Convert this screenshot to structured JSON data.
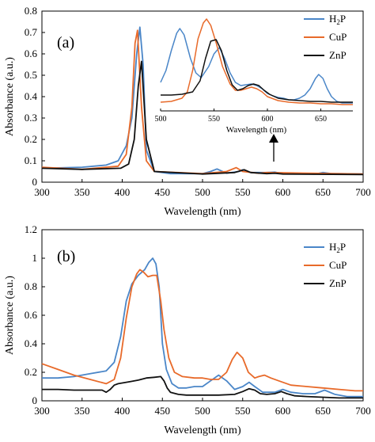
{
  "chart_data": [
    {
      "panel_label": "(a)",
      "type": "line",
      "xlabel": "Wavelength (nm)",
      "ylabel": "Absorbance (a.u.)",
      "xlim": [
        300,
        700
      ],
      "ylim": [
        0,
        0.8
      ],
      "x_ticks": [
        300,
        350,
        400,
        450,
        500,
        550,
        600,
        650,
        700
      ],
      "y_ticks": [
        0,
        0.1,
        0.2,
        0.3,
        0.4,
        0.5,
        0.6,
        0.7,
        0.8
      ],
      "legend_position": "top-right",
      "grid": false,
      "series": [
        {
          "name": "H2P",
          "legend_main": "H",
          "legend_sub": "2",
          "legend_rest": "P",
          "color": "#4a86c8",
          "x": [
            300,
            350,
            380,
            395,
            405,
            412,
            418,
            422,
            426,
            430,
            440,
            460,
            500,
            510,
            518,
            530,
            545,
            550,
            560,
            580,
            590,
            600,
            640,
            650,
            660,
            700
          ],
          "y": [
            0.065,
            0.07,
            0.08,
            0.1,
            0.17,
            0.3,
            0.6,
            0.725,
            0.55,
            0.15,
            0.05,
            0.04,
            0.04,
            0.05,
            0.062,
            0.042,
            0.05,
            0.058,
            0.045,
            0.045,
            0.047,
            0.04,
            0.038,
            0.045,
            0.04,
            0.038
          ]
        },
        {
          "name": "CuP",
          "legend_main": "CuP",
          "legend_sub": "",
          "legend_rest": "",
          "color": "#e86a2a",
          "x": [
            300,
            350,
            395,
            405,
            412,
            416,
            419,
            424,
            430,
            440,
            500,
            530,
            542,
            550,
            570,
            580,
            700
          ],
          "y": [
            0.07,
            0.06,
            0.075,
            0.13,
            0.35,
            0.65,
            0.71,
            0.35,
            0.1,
            0.05,
            0.04,
            0.05,
            0.068,
            0.05,
            0.042,
            0.045,
            0.038
          ]
        },
        {
          "name": "ZnP",
          "legend_main": "ZnP",
          "legend_sub": "",
          "legend_rest": "",
          "color": "#111111",
          "x": [
            300,
            350,
            398,
            408,
            415,
            420,
            424,
            430,
            440,
            500,
            540,
            552,
            560,
            580,
            590,
            600,
            700
          ],
          "y": [
            0.065,
            0.06,
            0.065,
            0.085,
            0.2,
            0.45,
            0.565,
            0.2,
            0.05,
            0.038,
            0.045,
            0.058,
            0.045,
            0.04,
            0.042,
            0.038,
            0.036
          ]
        }
      ],
      "inset": {
        "xlabel": "Wavelength (nm)",
        "xlim": [
          500,
          680
        ],
        "x_ticks": [
          500,
          550,
          600,
          650
        ],
        "series": [
          {
            "name": "H2P",
            "x": [
              500,
              505,
              510,
              515,
              518,
              522,
              528,
              533,
              538,
              545,
              550,
              555,
              560,
              565,
              570,
              575,
              580,
              585,
              590,
              595,
              600,
              605,
              610,
              615,
              620,
              625,
              630,
              635,
              640,
              645,
              648,
              652,
              656,
              660,
              665,
              670,
              675,
              680
            ],
            "y": [
              0.3,
              0.45,
              0.7,
              0.92,
              0.98,
              0.9,
              0.6,
              0.42,
              0.36,
              0.5,
              0.66,
              0.74,
              0.6,
              0.42,
              0.3,
              0.26,
              0.27,
              0.28,
              0.26,
              0.22,
              0.16,
              0.13,
              0.11,
              0.1,
              0.08,
              0.08,
              0.1,
              0.14,
              0.22,
              0.35,
              0.4,
              0.35,
              0.22,
              0.12,
              0.06,
              0.04,
              0.04,
              0.04
            ]
          },
          {
            "name": "CuP",
            "x": [
              500,
              510,
              520,
              525,
              530,
              535,
              540,
              543,
              547,
              552,
              558,
              565,
              570,
              575,
              580,
              585,
              590,
              595,
              600,
              610,
              620,
              630,
              640,
              650,
              660,
              670,
              680
            ],
            "y": [
              0.05,
              0.06,
              0.1,
              0.18,
              0.45,
              0.85,
              1.05,
              1.1,
              1.02,
              0.8,
              0.5,
              0.28,
              0.2,
              0.2,
              0.22,
              0.24,
              0.22,
              0.18,
              0.12,
              0.07,
              0.05,
              0.04,
              0.04,
              0.03,
              0.03,
              0.02,
              0.02
            ]
          },
          {
            "name": "ZnP",
            "x": [
              500,
              510,
              520,
              530,
              537,
              542,
              547,
              552,
              557,
              562,
              567,
              572,
              577,
              582,
              587,
              592,
              597,
              602,
              610,
              620,
              630,
              640,
              650,
              660,
              670,
              680
            ],
            "y": [
              0.14,
              0.14,
              0.15,
              0.18,
              0.32,
              0.6,
              0.82,
              0.84,
              0.7,
              0.45,
              0.27,
              0.2,
              0.22,
              0.26,
              0.28,
              0.26,
              0.2,
              0.15,
              0.1,
              0.08,
              0.07,
              0.06,
              0.06,
              0.05,
              0.05,
              0.05
            ]
          }
        ]
      }
    },
    {
      "panel_label": "(b)",
      "type": "line",
      "xlabel": "Wavelength (nm)",
      "ylabel": "Absorbance (a.u.)",
      "xlim": [
        300,
        700
      ],
      "ylim": [
        0,
        1.2
      ],
      "x_ticks": [
        300,
        350,
        400,
        450,
        500,
        550,
        600,
        650,
        700
      ],
      "y_ticks": [
        0,
        0.2,
        0.4,
        0.6,
        0.8,
        1,
        1.2
      ],
      "legend_position": "top-right",
      "grid": false,
      "series": [
        {
          "name": "H2P",
          "legend_main": "H",
          "legend_sub": "2",
          "legend_rest": "P",
          "color": "#4a86c8",
          "x": [
            300,
            320,
            340,
            360,
            380,
            390,
            398,
            405,
            412,
            420,
            428,
            433,
            438,
            442,
            446,
            450,
            455,
            462,
            470,
            480,
            490,
            500,
            510,
            520,
            530,
            540,
            550,
            558,
            565,
            575,
            590,
            600,
            610,
            625,
            640,
            652,
            665,
            680,
            700
          ],
          "y": [
            0.16,
            0.16,
            0.17,
            0.19,
            0.21,
            0.27,
            0.45,
            0.7,
            0.82,
            0.88,
            0.92,
            0.97,
            1.0,
            0.96,
            0.8,
            0.4,
            0.22,
            0.12,
            0.09,
            0.09,
            0.1,
            0.1,
            0.14,
            0.18,
            0.14,
            0.08,
            0.1,
            0.13,
            0.1,
            0.06,
            0.06,
            0.08,
            0.06,
            0.05,
            0.05,
            0.075,
            0.045,
            0.03,
            0.03
          ]
        },
        {
          "name": "CuP",
          "legend_main": "CuP",
          "legend_sub": "",
          "legend_rest": "",
          "color": "#e86a2a",
          "x": [
            300,
            320,
            340,
            360,
            380,
            390,
            398,
            405,
            412,
            418,
            422,
            427,
            432,
            438,
            443,
            448,
            452,
            458,
            465,
            475,
            490,
            500,
            510,
            520,
            530,
            537,
            543,
            550,
            557,
            565,
            570,
            577,
            585,
            595,
            610,
            630,
            650,
            670,
            690,
            700
          ],
          "y": [
            0.26,
            0.22,
            0.18,
            0.15,
            0.12,
            0.15,
            0.3,
            0.58,
            0.8,
            0.89,
            0.92,
            0.9,
            0.87,
            0.88,
            0.88,
            0.7,
            0.5,
            0.3,
            0.2,
            0.17,
            0.16,
            0.16,
            0.15,
            0.15,
            0.2,
            0.29,
            0.34,
            0.3,
            0.2,
            0.16,
            0.17,
            0.18,
            0.16,
            0.14,
            0.11,
            0.1,
            0.09,
            0.08,
            0.07,
            0.07
          ]
        },
        {
          "name": "ZnP",
          "legend_main": "ZnP",
          "legend_sub": "",
          "legend_rest": "",
          "color": "#111111",
          "x": [
            300,
            320,
            340,
            360,
            375,
            380,
            385,
            390,
            395,
            400,
            410,
            420,
            430,
            440,
            448,
            452,
            456,
            460,
            470,
            480,
            500,
            520,
            540,
            550,
            558,
            565,
            572,
            580,
            590,
            598,
            605,
            615,
            630,
            650,
            670,
            690,
            700
          ],
          "y": [
            0.08,
            0.08,
            0.075,
            0.075,
            0.075,
            0.06,
            0.08,
            0.11,
            0.12,
            0.125,
            0.135,
            0.145,
            0.16,
            0.165,
            0.17,
            0.14,
            0.09,
            0.06,
            0.045,
            0.04,
            0.04,
            0.04,
            0.045,
            0.065,
            0.085,
            0.075,
            0.05,
            0.045,
            0.05,
            0.065,
            0.05,
            0.035,
            0.03,
            0.025,
            0.02,
            0.02,
            0.02
          ]
        }
      ]
    }
  ]
}
